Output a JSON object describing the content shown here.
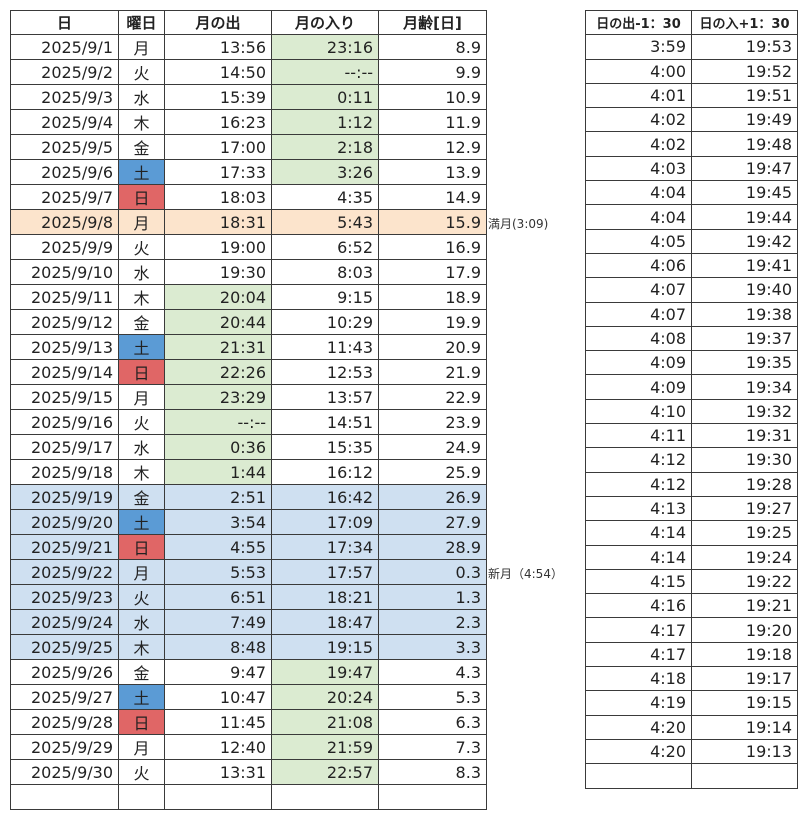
{
  "colors": {
    "moon_visible": "#dbebd1",
    "full_moon_row": "#fce4cc",
    "new_moon_period": "#cfe0f1",
    "saturday": "#5b9bd5",
    "sunday": "#e06666"
  },
  "moon_table": {
    "headers": [
      "日",
      "曜日",
      "月の出",
      "月の入り",
      "月齢[日]"
    ],
    "rows": [
      {
        "date": "2025/9/1",
        "dow": "月",
        "rise": "13:56",
        "set": "23:16",
        "age": "8.9",
        "rise_hl": false,
        "set_hl": true,
        "row_hl": "",
        "dow_hl": ""
      },
      {
        "date": "2025/9/2",
        "dow": "火",
        "rise": "14:50",
        "set": "--:--",
        "age": "9.9",
        "rise_hl": false,
        "set_hl": true,
        "row_hl": "",
        "dow_hl": ""
      },
      {
        "date": "2025/9/3",
        "dow": "水",
        "rise": "15:39",
        "set": "0:11",
        "age": "10.9",
        "rise_hl": false,
        "set_hl": true,
        "row_hl": "",
        "dow_hl": ""
      },
      {
        "date": "2025/9/4",
        "dow": "木",
        "rise": "16:23",
        "set": "1:12",
        "age": "11.9",
        "rise_hl": false,
        "set_hl": true,
        "row_hl": "",
        "dow_hl": ""
      },
      {
        "date": "2025/9/5",
        "dow": "金",
        "rise": "17:00",
        "set": "2:18",
        "age": "12.9",
        "rise_hl": false,
        "set_hl": true,
        "row_hl": "",
        "dow_hl": ""
      },
      {
        "date": "2025/9/6",
        "dow": "土",
        "rise": "17:33",
        "set": "3:26",
        "age": "13.9",
        "rise_hl": false,
        "set_hl": true,
        "row_hl": "",
        "dow_hl": "sat"
      },
      {
        "date": "2025/9/7",
        "dow": "日",
        "rise": "18:03",
        "set": "4:35",
        "age": "14.9",
        "rise_hl": false,
        "set_hl": false,
        "row_hl": "",
        "dow_hl": "sun"
      },
      {
        "date": "2025/9/8",
        "dow": "月",
        "rise": "18:31",
        "set": "5:43",
        "age": "15.9",
        "rise_hl": false,
        "set_hl": false,
        "row_hl": "full",
        "dow_hl": ""
      },
      {
        "date": "2025/9/9",
        "dow": "火",
        "rise": "19:00",
        "set": "6:52",
        "age": "16.9",
        "rise_hl": false,
        "set_hl": false,
        "row_hl": "",
        "dow_hl": ""
      },
      {
        "date": "2025/9/10",
        "dow": "水",
        "rise": "19:30",
        "set": "8:03",
        "age": "17.9",
        "rise_hl": false,
        "set_hl": false,
        "row_hl": "",
        "dow_hl": ""
      },
      {
        "date": "2025/9/11",
        "dow": "木",
        "rise": "20:04",
        "set": "9:15",
        "age": "18.9",
        "rise_hl": true,
        "set_hl": false,
        "row_hl": "",
        "dow_hl": ""
      },
      {
        "date": "2025/9/12",
        "dow": "金",
        "rise": "20:44",
        "set": "10:29",
        "age": "19.9",
        "rise_hl": true,
        "set_hl": false,
        "row_hl": "",
        "dow_hl": ""
      },
      {
        "date": "2025/9/13",
        "dow": "土",
        "rise": "21:31",
        "set": "11:43",
        "age": "20.9",
        "rise_hl": true,
        "set_hl": false,
        "row_hl": "",
        "dow_hl": "sat"
      },
      {
        "date": "2025/9/14",
        "dow": "日",
        "rise": "22:26",
        "set": "12:53",
        "age": "21.9",
        "rise_hl": true,
        "set_hl": false,
        "row_hl": "",
        "dow_hl": "sun"
      },
      {
        "date": "2025/9/15",
        "dow": "月",
        "rise": "23:29",
        "set": "13:57",
        "age": "22.9",
        "rise_hl": true,
        "set_hl": false,
        "row_hl": "",
        "dow_hl": ""
      },
      {
        "date": "2025/9/16",
        "dow": "火",
        "rise": "--:--",
        "set": "14:51",
        "age": "23.9",
        "rise_hl": true,
        "set_hl": false,
        "row_hl": "",
        "dow_hl": ""
      },
      {
        "date": "2025/9/17",
        "dow": "水",
        "rise": "0:36",
        "set": "15:35",
        "age": "24.9",
        "rise_hl": true,
        "set_hl": false,
        "row_hl": "",
        "dow_hl": ""
      },
      {
        "date": "2025/9/18",
        "dow": "木",
        "rise": "1:44",
        "set": "16:12",
        "age": "25.9",
        "rise_hl": true,
        "set_hl": false,
        "row_hl": "",
        "dow_hl": ""
      },
      {
        "date": "2025/9/19",
        "dow": "金",
        "rise": "2:51",
        "set": "16:42",
        "age": "26.9",
        "rise_hl": false,
        "set_hl": false,
        "row_hl": "new",
        "dow_hl": ""
      },
      {
        "date": "2025/9/20",
        "dow": "土",
        "rise": "3:54",
        "set": "17:09",
        "age": "27.9",
        "rise_hl": false,
        "set_hl": false,
        "row_hl": "new",
        "dow_hl": "sat"
      },
      {
        "date": "2025/9/21",
        "dow": "日",
        "rise": "4:55",
        "set": "17:34",
        "age": "28.9",
        "rise_hl": false,
        "set_hl": false,
        "row_hl": "new",
        "dow_hl": "sun"
      },
      {
        "date": "2025/9/22",
        "dow": "月",
        "rise": "5:53",
        "set": "17:57",
        "age": "0.3",
        "rise_hl": false,
        "set_hl": false,
        "row_hl": "new",
        "dow_hl": ""
      },
      {
        "date": "2025/9/23",
        "dow": "火",
        "rise": "6:51",
        "set": "18:21",
        "age": "1.3",
        "rise_hl": false,
        "set_hl": false,
        "row_hl": "new",
        "dow_hl": ""
      },
      {
        "date": "2025/9/24",
        "dow": "水",
        "rise": "7:49",
        "set": "18:47",
        "age": "2.3",
        "rise_hl": false,
        "set_hl": false,
        "row_hl": "new",
        "dow_hl": ""
      },
      {
        "date": "2025/9/25",
        "dow": "木",
        "rise": "8:48",
        "set": "19:15",
        "age": "3.3",
        "rise_hl": false,
        "set_hl": false,
        "row_hl": "new",
        "dow_hl": ""
      },
      {
        "date": "2025/9/26",
        "dow": "金",
        "rise": "9:47",
        "set": "19:47",
        "age": "4.3",
        "rise_hl": false,
        "set_hl": true,
        "row_hl": "",
        "dow_hl": ""
      },
      {
        "date": "2025/9/27",
        "dow": "土",
        "rise": "10:47",
        "set": "20:24",
        "age": "5.3",
        "rise_hl": false,
        "set_hl": true,
        "row_hl": "",
        "dow_hl": "sat"
      },
      {
        "date": "2025/9/28",
        "dow": "日",
        "rise": "11:45",
        "set": "21:08",
        "age": "6.3",
        "rise_hl": false,
        "set_hl": true,
        "row_hl": "",
        "dow_hl": "sun"
      },
      {
        "date": "2025/9/29",
        "dow": "月",
        "rise": "12:40",
        "set": "21:59",
        "age": "7.3",
        "rise_hl": false,
        "set_hl": true,
        "row_hl": "",
        "dow_hl": ""
      },
      {
        "date": "2025/9/30",
        "dow": "火",
        "rise": "13:31",
        "set": "22:57",
        "age": "8.3",
        "rise_hl": false,
        "set_hl": true,
        "row_hl": "",
        "dow_hl": ""
      }
    ]
  },
  "notes": [
    {
      "row_index": 7,
      "text": "満月(3:09)"
    },
    {
      "row_index": 21,
      "text": "新月（4:54）"
    }
  ],
  "sun_table": {
    "headers": [
      "日の出-1：30",
      "日の入+1：30"
    ],
    "rows": [
      [
        "3:59",
        "19:53"
      ],
      [
        "4:00",
        "19:52"
      ],
      [
        "4:01",
        "19:51"
      ],
      [
        "4:02",
        "19:49"
      ],
      [
        "4:02",
        "19:48"
      ],
      [
        "4:03",
        "19:47"
      ],
      [
        "4:04",
        "19:45"
      ],
      [
        "4:04",
        "19:44"
      ],
      [
        "4:05",
        "19:42"
      ],
      [
        "4:06",
        "19:41"
      ],
      [
        "4:07",
        "19:40"
      ],
      [
        "4:07",
        "19:38"
      ],
      [
        "4:08",
        "19:37"
      ],
      [
        "4:09",
        "19:35"
      ],
      [
        "4:09",
        "19:34"
      ],
      [
        "4:10",
        "19:32"
      ],
      [
        "4:11",
        "19:31"
      ],
      [
        "4:12",
        "19:30"
      ],
      [
        "4:12",
        "19:28"
      ],
      [
        "4:13",
        "19:27"
      ],
      [
        "4:14",
        "19:25"
      ],
      [
        "4:14",
        "19:24"
      ],
      [
        "4:15",
        "19:22"
      ],
      [
        "4:16",
        "19:21"
      ],
      [
        "4:17",
        "19:20"
      ],
      [
        "4:17",
        "19:18"
      ],
      [
        "4:18",
        "19:17"
      ],
      [
        "4:19",
        "19:15"
      ],
      [
        "4:20",
        "19:14"
      ],
      [
        "4:20",
        "19:13"
      ]
    ]
  }
}
